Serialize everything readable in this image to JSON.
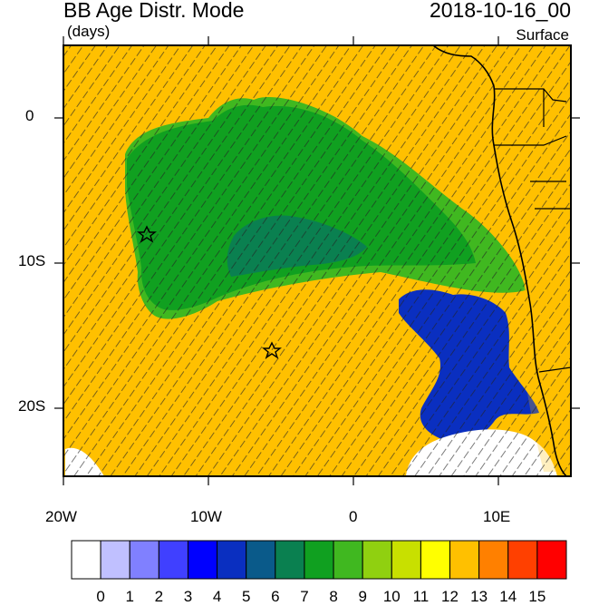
{
  "header": {
    "title": "BB Age Distr. Mode",
    "units": "(days)",
    "datetime": "2018-10-16_00",
    "level": "Surface"
  },
  "axes": {
    "lat_labels": [
      "0",
      "10S",
      "20S"
    ],
    "lon_labels": [
      "20W",
      "10W",
      "0",
      "10E"
    ]
  },
  "colorbar": {
    "labels": [
      "0",
      "1",
      "2",
      "3",
      "4",
      "5",
      "6",
      "7",
      "8",
      "9",
      "10",
      "11",
      "12",
      "13",
      "14",
      "15"
    ],
    "colors": [
      "#ffffff",
      "#c0c0ff",
      "#8080ff",
      "#4040ff",
      "#0000ff",
      "#0a2fc0",
      "#0a5a8a",
      "#0a8050",
      "#10a020",
      "#40b820",
      "#90d010",
      "#c8e000",
      "#ffff00",
      "#ffc000",
      "#ff8000",
      "#ff4000",
      "#ff0000"
    ]
  },
  "map": {
    "background_color": "#ffc000",
    "markers": [
      "star",
      "star"
    ]
  }
}
